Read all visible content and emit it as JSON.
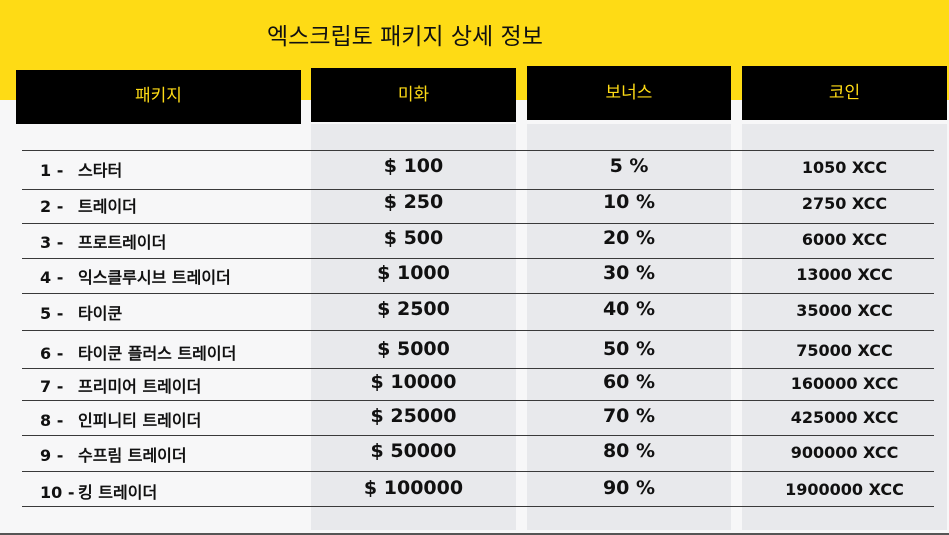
{
  "title": "엑스크립토 패키지 상세 정보",
  "headers": {
    "package": "패키지",
    "usd": "미화",
    "bonus": "보너스",
    "coin": "코인"
  },
  "rows": [
    {
      "num": "1 -",
      "name": "스타터",
      "usd": "$ 100",
      "bonus": "5 %",
      "coin": "1050 XCC"
    },
    {
      "num": "2 -",
      "name": "트레이더",
      "usd": "$ 250",
      "bonus": "10 %",
      "coin": "2750 XCC"
    },
    {
      "num": "3 -",
      "name": "프로트레이더",
      "usd": "$ 500",
      "bonus": "20 %",
      "coin": "6000 XCC"
    },
    {
      "num": "4 -",
      "name": "익스클루시브 트레이더",
      "usd": "$ 1000",
      "bonus": "30 %",
      "coin": "13000 XCC"
    },
    {
      "num": "5 -",
      "name": "타이쿤",
      "usd": "$ 2500",
      "bonus": "40 %",
      "coin": "35000 XCC"
    },
    {
      "num": "6 -",
      "name": "타이쿤 플러스 트레이더",
      "usd": "$ 5000",
      "bonus": "50 %",
      "coin": "75000 XCC"
    },
    {
      "num": "7 -",
      "name": "프리미어 트레이더",
      "usd": "$ 10000",
      "bonus": "60 %",
      "coin": "160000 XCC"
    },
    {
      "num": "8 -",
      "name": "인피니티 트레이더",
      "usd": "$ 25000",
      "bonus": "70 %",
      "coin": "425000 XCC"
    },
    {
      "num": "9 -",
      "name": "수프림 트레이더",
      "usd": "$ 50000",
      "bonus": "80 %",
      "coin": "900000 XCC"
    },
    {
      "num": "10 -",
      "name": "킹 트레이더",
      "usd": "$ 100000",
      "bonus": "90 %",
      "coin": "1900000 XCC"
    }
  ],
  "colors": {
    "accent": "#fedb15",
    "header_bg": "#000000"
  }
}
